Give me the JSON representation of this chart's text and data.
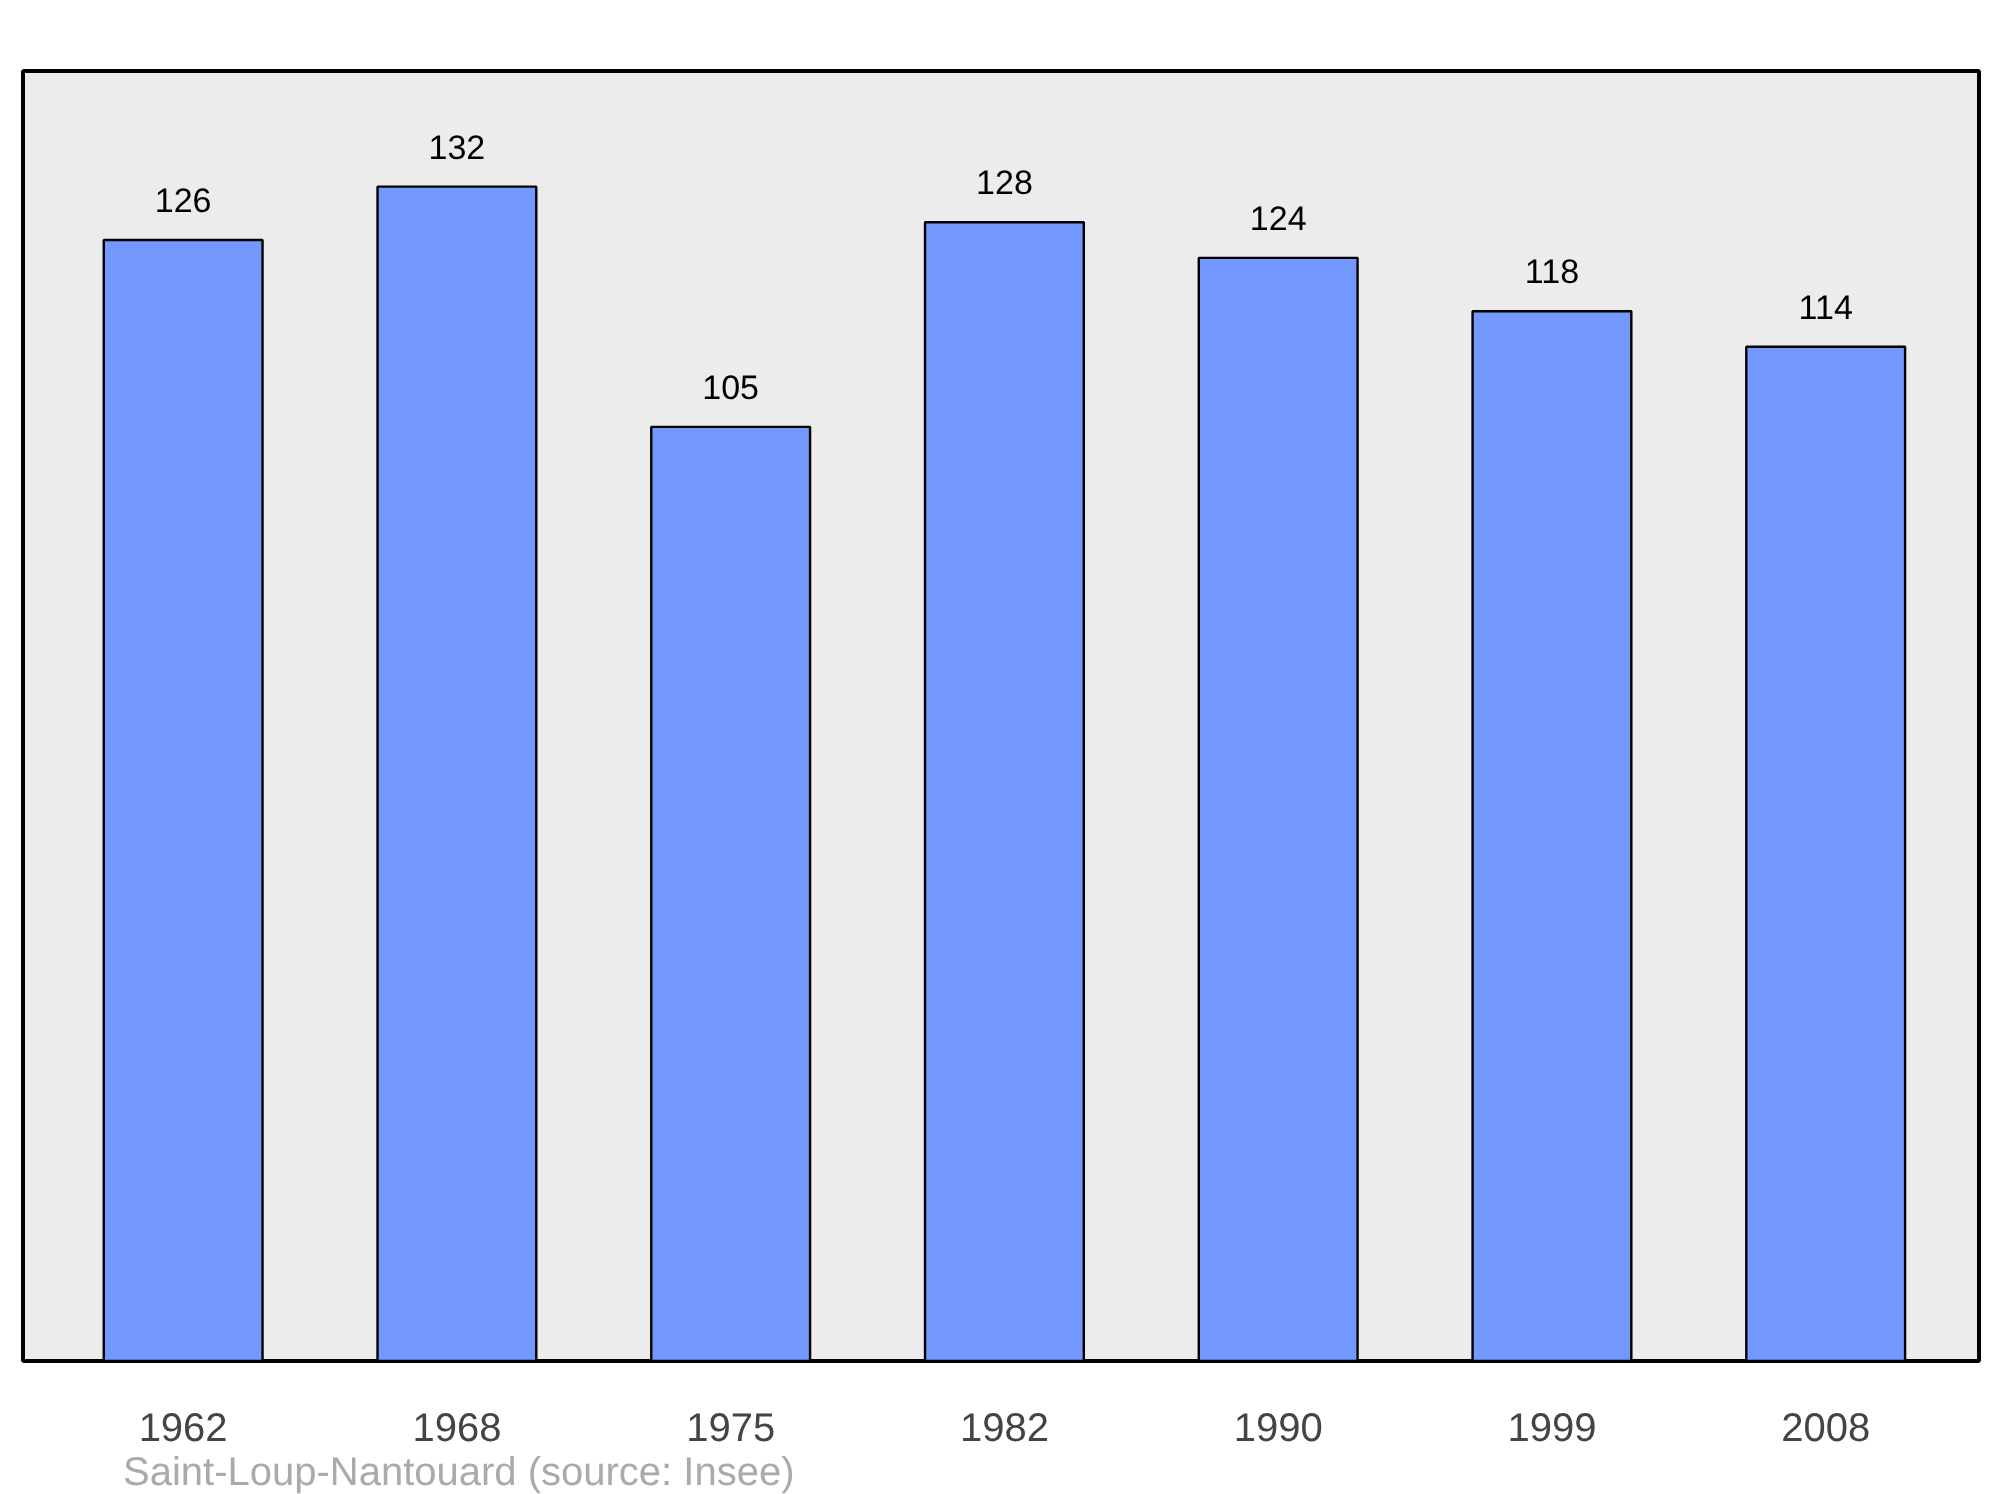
{
  "chart_data": {
    "type": "bar",
    "categories": [
      "1962",
      "1968",
      "1975",
      "1982",
      "1990",
      "1999",
      "2008"
    ],
    "values": [
      126,
      132,
      105,
      128,
      124,
      118,
      114
    ],
    "color": "#7399ff",
    "ylim": [
      0,
      145
    ],
    "tick_labels": "x",
    "grid": false,
    "data_labels": true,
    "annotations": [
      "Saint-Loup-Nantouard    (source: Insee)"
    ]
  }
}
